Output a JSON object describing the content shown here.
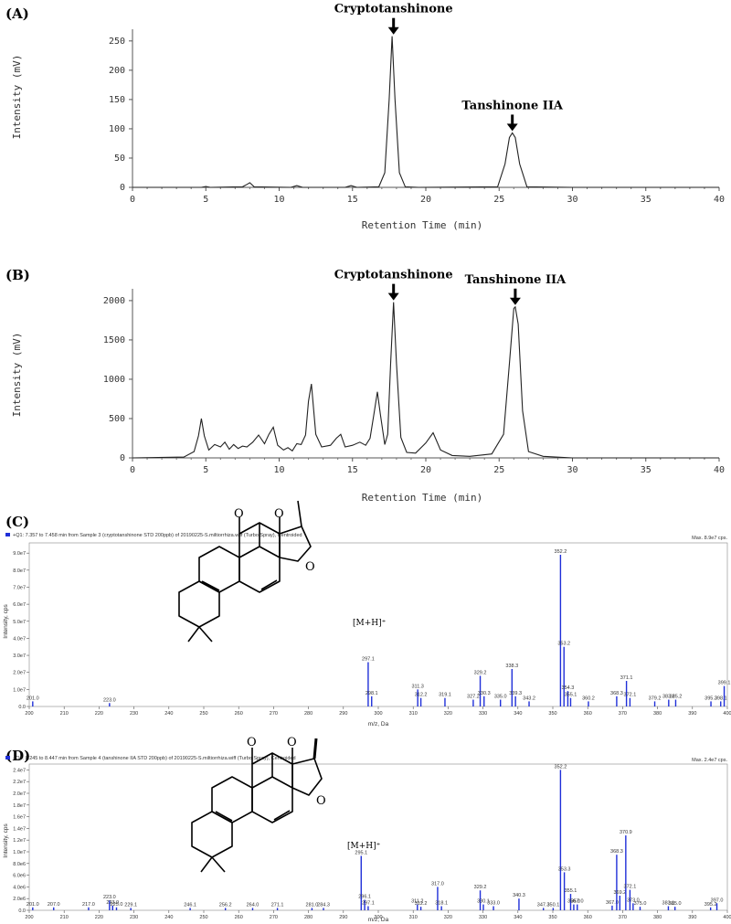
{
  "chart_data": [
    {
      "panel": "(A)",
      "type": "line",
      "xlabel": "Retention Time (min)",
      "ylabel": "Intensity (mV)",
      "xlim": [
        0,
        40
      ],
      "ylim": [
        0,
        270
      ],
      "xticks": [
        "0",
        "5",
        "10",
        "15",
        "20",
        "25",
        "30",
        "35",
        "40"
      ],
      "yticks": [
        "0",
        "50",
        "100",
        "150",
        "200",
        "250"
      ],
      "series": [
        {
          "x": [
            0,
            4.7,
            5.0,
            5.3,
            7.5,
            7.8,
            8.0,
            8.3,
            10.8,
            11.2,
            11.6,
            14.5,
            14.9,
            15.3,
            16.8,
            17.2,
            17.5,
            17.7,
            17.9,
            18.2,
            18.6,
            19.5,
            24.9,
            25.4,
            25.7,
            25.9,
            26.1,
            26.4,
            26.9,
            30,
            35,
            40
          ],
          "y": [
            0,
            0,
            1.5,
            0,
            1,
            5,
            8,
            1,
            0,
            3,
            0,
            0,
            3,
            0,
            1,
            25,
            150,
            258,
            150,
            25,
            1,
            0,
            1,
            40,
            85,
            93,
            85,
            40,
            1,
            0,
            0,
            0
          ]
        }
      ],
      "annotations": [
        {
          "text": "Cryptotanshinone",
          "x": 17.8,
          "y": 258
        },
        {
          "text": "Tanshinone IIA",
          "x": 25.9,
          "y": 93
        }
      ]
    },
    {
      "panel": "(B)",
      "type": "line",
      "xlabel": "Retention Time (min)",
      "ylabel": "Intensity (mV)",
      "xlim": [
        0,
        40
      ],
      "ylim": [
        0,
        2150
      ],
      "xticks": [
        "0",
        "5",
        "10",
        "15",
        "20",
        "25",
        "30",
        "35",
        "40"
      ],
      "yticks": [
        "0",
        "500",
        "1000",
        "1500",
        "2000"
      ],
      "series": [
        {
          "x": [
            0,
            3.5,
            4.2,
            4.5,
            4.7,
            4.9,
            5.2,
            5.6,
            6.0,
            6.3,
            6.6,
            6.9,
            7.2,
            7.5,
            7.8,
            8.2,
            8.6,
            9.0,
            9.3,
            9.6,
            9.9,
            10.3,
            10.6,
            10.9,
            11.2,
            11.5,
            11.8,
            12.0,
            12.2,
            12.5,
            12.9,
            13.5,
            13.9,
            14.2,
            14.5,
            15.0,
            15.5,
            15.9,
            16.2,
            16.5,
            16.7,
            16.9,
            17.2,
            17.4,
            17.6,
            17.8,
            18.0,
            18.3,
            18.7,
            19.3,
            20.0,
            20.5,
            21.0,
            21.8,
            23.0,
            24.5,
            25.3,
            25.7,
            26.0,
            26.1,
            26.3,
            26.6,
            27.0,
            28,
            30,
            40
          ],
          "y": [
            0,
            10,
            80,
            280,
            500,
            280,
            100,
            170,
            140,
            200,
            110,
            170,
            120,
            150,
            140,
            200,
            290,
            180,
            300,
            390,
            160,
            100,
            130,
            90,
            180,
            170,
            290,
            720,
            940,
            300,
            140,
            160,
            250,
            300,
            140,
            160,
            200,
            160,
            250,
            600,
            840,
            560,
            170,
            300,
            1200,
            1980,
            1200,
            260,
            70,
            60,
            190,
            320,
            100,
            30,
            20,
            50,
            300,
            1200,
            1900,
            1920,
            1700,
            600,
            80,
            20,
            0,
            0
          ]
        }
      ],
      "annotations": [
        {
          "text": "Cryptotanshinone",
          "x": 17.8,
          "y": 1980
        },
        {
          "text": "Tanshinone IIA",
          "x": 26.1,
          "y": 1920
        }
      ]
    },
    {
      "panel": "(C)",
      "type": "bar",
      "header": "+Q1: 7.357 to 7.458 min from Sample 3 (cryptotanshinone STD 200ppb) of 20190225-S.miltiorrhiza.wiff (Turbo Spray), Centroided",
      "max_label": "Max. 8.9e7 cps.",
      "xlabel": "m/z, Da",
      "ylabel": "Intensity, cps",
      "xlim": [
        200,
        400
      ],
      "ylim": [
        0,
        96000000.0
      ],
      "xticks": [
        "200",
        "210",
        "220",
        "230",
        "240",
        "250",
        "260",
        "270",
        "280",
        "290",
        "300",
        "310",
        "320",
        "330",
        "340",
        "350",
        "360",
        "370",
        "380",
        "390",
        "400"
      ],
      "yticks": [
        "0.0",
        "1.0e7",
        "2.0e7",
        "3.0e7",
        "4.0e7",
        "5.0e7",
        "6.0e7",
        "7.0e7",
        "8.0e7",
        "9.0e7"
      ],
      "ion_label": "[M+H]⁺",
      "peaks": [
        {
          "mz": 201.0,
          "i": 3000000.0,
          "label": "201.0"
        },
        {
          "mz": 223.0,
          "i": 2000000.0,
          "label": "223.0"
        },
        {
          "mz": 297.1,
          "i": 26000000.0,
          "label": "297.1"
        },
        {
          "mz": 298.1,
          "i": 6000000.0,
          "label": "298.1"
        },
        {
          "mz": 311.3,
          "i": 10000000.0,
          "label": "311.3"
        },
        {
          "mz": 312.2,
          "i": 5000000.0,
          "label": "312.2"
        },
        {
          "mz": 319.1,
          "i": 5000000.0,
          "label": "319.1"
        },
        {
          "mz": 327.2,
          "i": 4000000.0,
          "label": "327.2"
        },
        {
          "mz": 329.2,
          "i": 18000000.0,
          "label": "329.2"
        },
        {
          "mz": 330.3,
          "i": 6000000.0,
          "label": "330.3"
        },
        {
          "mz": 335.0,
          "i": 4000000.0,
          "label": "335.0"
        },
        {
          "mz": 338.3,
          "i": 22000000.0,
          "label": "338.3"
        },
        {
          "mz": 339.3,
          "i": 6000000.0,
          "label": "339.3"
        },
        {
          "mz": 343.2,
          "i": 3000000.0,
          "label": "343.2"
        },
        {
          "mz": 352.2,
          "i": 89000000.0,
          "label": "352.2"
        },
        {
          "mz": 353.2,
          "i": 35000000.0,
          "label": "353.2"
        },
        {
          "mz": 354.3,
          "i": 9000000.0,
          "label": "354.3"
        },
        {
          "mz": 355.1,
          "i": 5000000.0,
          "label": "355.1"
        },
        {
          "mz": 360.2,
          "i": 3000000.0,
          "label": "360.2"
        },
        {
          "mz": 368.3,
          "i": 6000000.0,
          "label": "368.3"
        },
        {
          "mz": 371.1,
          "i": 15000000.0,
          "label": "371.1"
        },
        {
          "mz": 372.1,
          "i": 5000000.0,
          "label": "372.1"
        },
        {
          "mz": 379.2,
          "i": 3000000.0,
          "label": "379.2"
        },
        {
          "mz": 383.2,
          "i": 4000000.0,
          "label": "383.2"
        },
        {
          "mz": 385.2,
          "i": 4000000.0,
          "label": "385.2"
        },
        {
          "mz": 395.3,
          "i": 3000000.0,
          "label": "395.3"
        },
        {
          "mz": 398.1,
          "i": 3000000.0,
          "label": "398.1"
        },
        {
          "mz": 399.1,
          "i": 12000000.0,
          "label": "399.1"
        }
      ]
    },
    {
      "panel": "(D)",
      "type": "bar",
      "header": "+Q1: 8.245 to 8.447 min from Sample 4 (tanshinone IIA STD 200ppb) of 20190225-S.miltiorrhiza.wiff (Turbo Spray), Centroided",
      "max_label": "Max. 2.4e7 cps.",
      "xlabel": "m/z, Da",
      "ylabel": "Intensity, cps",
      "xlim": [
        200,
        400
      ],
      "ylim": [
        0,
        25000000.0
      ],
      "xticks": [
        "200",
        "210",
        "220",
        "230",
        "240",
        "250",
        "260",
        "270",
        "280",
        "290",
        "300",
        "310",
        "320",
        "330",
        "340",
        "350",
        "360",
        "370",
        "380",
        "390",
        "400"
      ],
      "yticks": [
        "0.0",
        "2.0e6",
        "4.0e6",
        "6.0e6",
        "8.0e6",
        "1.0e7",
        "1.2e7",
        "1.4e7",
        "1.6e7",
        "1.8e7",
        "2.0e7",
        "2.2e7",
        "2.4e7"
      ],
      "ion_label": "[M+H]⁺",
      "peaks": [
        {
          "mz": 201.0,
          "i": 500000.0,
          "label": "201.0"
        },
        {
          "mz": 207.0,
          "i": 500000.0,
          "label": "207.0"
        },
        {
          "mz": 217.0,
          "i": 500000.0,
          "label": "217.0"
        },
        {
          "mz": 223.0,
          "i": 1700000.0,
          "label": "223.0"
        },
        {
          "mz": 223.9,
          "i": 800000.0,
          "label": "223.9"
        },
        {
          "mz": 225.0,
          "i": 500000.0,
          "label": "225.0"
        },
        {
          "mz": 229.1,
          "i": 400000.0,
          "label": "229.1"
        },
        {
          "mz": 246.1,
          "i": 400000.0,
          "label": "246.1"
        },
        {
          "mz": 256.2,
          "i": 400000.0,
          "label": "256.2"
        },
        {
          "mz": 264.0,
          "i": 400000.0,
          "label": "264.0"
        },
        {
          "mz": 271.1,
          "i": 400000.0,
          "label": "271.1"
        },
        {
          "mz": 281.0,
          "i": 400000.0,
          "label": "281.0"
        },
        {
          "mz": 284.3,
          "i": 400000.0,
          "label": "284.3"
        },
        {
          "mz": 295.1,
          "i": 9300000.0,
          "label": "295.1"
        },
        {
          "mz": 296.1,
          "i": 1800000.0,
          "label": "296.1"
        },
        {
          "mz": 297.1,
          "i": 700000.0,
          "label": "297.1"
        },
        {
          "mz": 311.2,
          "i": 1000000.0,
          "label": "311.2"
        },
        {
          "mz": 312.2,
          "i": 600000.0,
          "label": "312.2"
        },
        {
          "mz": 317.0,
          "i": 4000000.0,
          "label": "317.0"
        },
        {
          "mz": 318.1,
          "i": 700000.0,
          "label": "318.1"
        },
        {
          "mz": 329.2,
          "i": 3400000.0,
          "label": "329.2"
        },
        {
          "mz": 330.1,
          "i": 1000000.0,
          "label": "330.1"
        },
        {
          "mz": 333.0,
          "i": 700000.0,
          "label": "333.0"
        },
        {
          "mz": 340.3,
          "i": 2000000.0,
          "label": "340.3"
        },
        {
          "mz": 347.3,
          "i": 400000.0,
          "label": "347.3"
        },
        {
          "mz": 350.1,
          "i": 400000.0,
          "label": "350.1"
        },
        {
          "mz": 352.2,
          "i": 24000000.0,
          "label": "352.2"
        },
        {
          "mz": 353.3,
          "i": 6500000.0,
          "label": "353.3"
        },
        {
          "mz": 355.1,
          "i": 2800000.0,
          "label": "355.1"
        },
        {
          "mz": 356.0,
          "i": 1000000.0,
          "label": "356.0"
        },
        {
          "mz": 357.0,
          "i": 1000000.0,
          "label": "357.0"
        },
        {
          "mz": 367.0,
          "i": 800000.0,
          "label": "367.0"
        },
        {
          "mz": 368.3,
          "i": 9500000.0,
          "label": "368.3"
        },
        {
          "mz": 369.2,
          "i": 2500000.0,
          "label": "369.2"
        },
        {
          "mz": 370.9,
          "i": 12800000.0,
          "label": "370.9"
        },
        {
          "mz": 372.1,
          "i": 3500000.0,
          "label": "372.1"
        },
        {
          "mz": 373.0,
          "i": 1200000.0,
          "label": "373.0"
        },
        {
          "mz": 375.0,
          "i": 600000.0,
          "label": "375.0"
        },
        {
          "mz": 383.1,
          "i": 700000.0,
          "label": "383.1"
        },
        {
          "mz": 385.0,
          "i": 600000.0,
          "label": "385.0"
        },
        {
          "mz": 395.2,
          "i": 500000.0,
          "label": "395.2"
        },
        {
          "mz": 397.0,
          "i": 1200000.0,
          "label": "397.0"
        }
      ]
    }
  ],
  "colors": {
    "chromatogram_line": "#222222",
    "ms_stick": "#1f2fd8",
    "axis": "#555555",
    "legend_marker": "#1f2fd8"
  },
  "molecule_icons": [
    "cryptotanshinone-structure-icon",
    "tanshinone-iia-structure-icon"
  ]
}
